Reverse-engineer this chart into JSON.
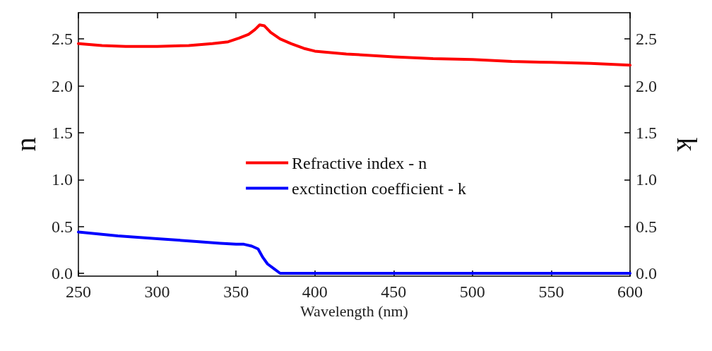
{
  "chart_data": {
    "type": "line",
    "xlabel": "Wavelength (nm)",
    "ylabel": "n",
    "y2label": "k",
    "xlim": [
      250,
      600
    ],
    "xticks": [
      250,
      300,
      350,
      400,
      450,
      500,
      550,
      600
    ],
    "ylim": [
      -0.03,
      2.78
    ],
    "yticks": [
      {
        "value": 0,
        "label": "0.0"
      },
      0.5,
      {
        "value": 1,
        "label": "1.0"
      },
      1.5,
      {
        "value": 2,
        "label": "2.0"
      },
      2.5
    ],
    "y2lim": [
      -0.03,
      2.78
    ],
    "y2ticks": [
      {
        "value": 0,
        "label": "0.0"
      },
      0.5,
      {
        "value": 1,
        "label": "1.0"
      },
      1.5,
      {
        "value": 2,
        "label": "2.0"
      },
      2.5
    ],
    "grid": false,
    "legend": "center",
    "marker": "none",
    "line_style": "solid",
    "series": [
      {
        "name": "Refractive index - n",
        "color": "#ff0000",
        "x": [
          250,
          265,
          280,
          300,
          320,
          335,
          345,
          352,
          358,
          362,
          365,
          368,
          372,
          378,
          385,
          393,
          400,
          420,
          450,
          475,
          500,
          525,
          550,
          575,
          600
        ],
        "values": [
          2.45,
          2.43,
          2.42,
          2.42,
          2.43,
          2.45,
          2.47,
          2.51,
          2.55,
          2.6,
          2.65,
          2.64,
          2.57,
          2.5,
          2.45,
          2.4,
          2.37,
          2.34,
          2.31,
          2.29,
          2.28,
          2.26,
          2.25,
          2.24,
          2.22
        ]
      },
      {
        "name": "exctinction coefficient - k",
        "color": "#0000ff",
        "axis": "y2",
        "x": [
          250,
          275,
          300,
          325,
          340,
          350,
          355,
          360,
          364,
          367,
          370,
          374,
          378,
          400,
          450,
          500,
          550,
          600
        ],
        "values": [
          0.44,
          0.4,
          0.37,
          0.34,
          0.32,
          0.31,
          0.31,
          0.29,
          0.26,
          0.17,
          0.1,
          0.05,
          0.0,
          0.0,
          0.0,
          0.0,
          0.0,
          0.0
        ]
      }
    ]
  }
}
